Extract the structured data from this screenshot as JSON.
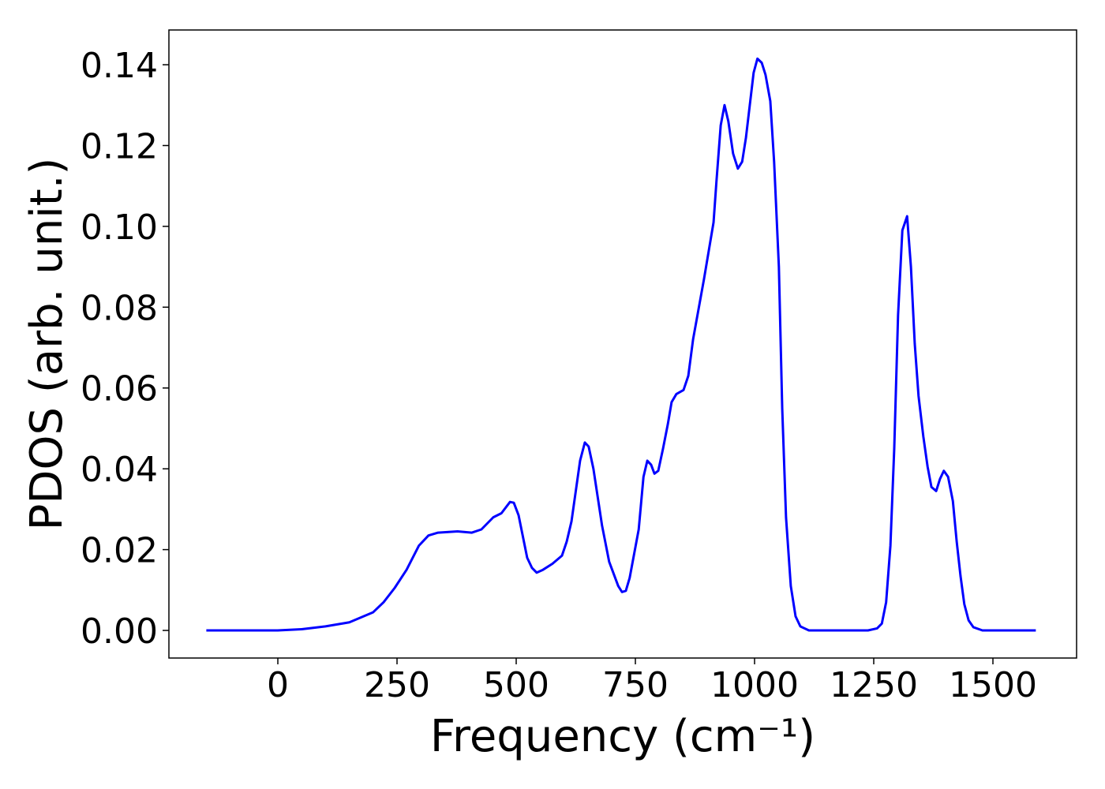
{
  "chart_data": {
    "type": "line",
    "xlabel": "Frequency (cm⁻¹)",
    "ylabel": "PDOS (arb. unit.)",
    "xlim": [
      -228.5,
      1675.5
    ],
    "ylim": [
      -0.00683,
      0.1486
    ],
    "xticks": [
      0,
      250,
      500,
      750,
      1000,
      1250,
      1500
    ],
    "yticks": [
      {
        "value": 0,
        "label": "0.00"
      },
      {
        "value": 0.02,
        "label": "0.02"
      },
      {
        "value": 0.04,
        "label": "0.04"
      },
      {
        "value": 0.06,
        "label": "0.06"
      },
      {
        "value": 0.08,
        "label": "0.08"
      },
      {
        "value": 0.1,
        "label": "0.10"
      },
      {
        "value": 0.12,
        "label": "0.12"
      },
      {
        "value": 0.14,
        "label": "0.14"
      }
    ],
    "grid": false,
    "series": [
      {
        "color": "#0000ff",
        "x": [
          -150,
          0,
          50,
          100,
          150,
          200,
          222,
          245,
          270,
          296,
          316,
          336,
          377,
          407,
          427,
          452,
          469,
          487,
          495,
          505,
          523,
          533,
          543,
          556,
          576,
          596,
          606,
          616,
          634,
          644,
          652,
          662,
          680,
          695,
          714,
          722,
          730,
          738,
          757,
          767,
          775,
          783,
          790,
          798,
          808,
          818,
          826,
          836,
          851,
          861,
          871,
          894,
          904,
          914,
          920,
          929,
          937,
          945,
          955,
          965,
          974,
          982,
          990,
          998,
          1006,
          1015,
          1023,
          1033,
          1041,
          1051,
          1058,
          1066,
          1076,
          1086,
          1096,
          1114,
          1238,
          1257,
          1267,
          1276,
          1285,
          1293,
          1301,
          1310,
          1320,
          1328,
          1336,
          1344,
          1354,
          1363,
          1371,
          1381,
          1389,
          1397,
          1406,
          1416,
          1424,
          1432,
          1440,
          1449,
          1459,
          1478,
          1590
        ],
        "values": [
          0,
          0,
          0.0003,
          0.001,
          0.002,
          0.0045,
          0.007,
          0.0105,
          0.015,
          0.021,
          0.0235,
          0.0242,
          0.0245,
          0.0242,
          0.025,
          0.028,
          0.029,
          0.0318,
          0.0316,
          0.0285,
          0.018,
          0.0155,
          0.0143,
          0.015,
          0.0165,
          0.0185,
          0.022,
          0.027,
          0.042,
          0.0465,
          0.0455,
          0.04,
          0.026,
          0.017,
          0.011,
          0.0095,
          0.0098,
          0.013,
          0.025,
          0.038,
          0.042,
          0.041,
          0.0388,
          0.0395,
          0.045,
          0.051,
          0.0565,
          0.0585,
          0.0595,
          0.063,
          0.072,
          0.087,
          0.094,
          0.101,
          0.111,
          0.125,
          0.13,
          0.126,
          0.118,
          0.1143,
          0.116,
          0.122,
          0.13,
          0.138,
          0.1415,
          0.1405,
          0.1375,
          0.131,
          0.116,
          0.09,
          0.055,
          0.028,
          0.011,
          0.0035,
          0.001,
          0,
          0,
          0.0005,
          0.0017,
          0.007,
          0.021,
          0.045,
          0.078,
          0.099,
          0.1025,
          0.09,
          0.071,
          0.058,
          0.048,
          0.0405,
          0.0355,
          0.0345,
          0.0375,
          0.0395,
          0.038,
          0.032,
          0.022,
          0.0135,
          0.0065,
          0.0025,
          0.0008,
          0,
          0
        ]
      }
    ]
  }
}
